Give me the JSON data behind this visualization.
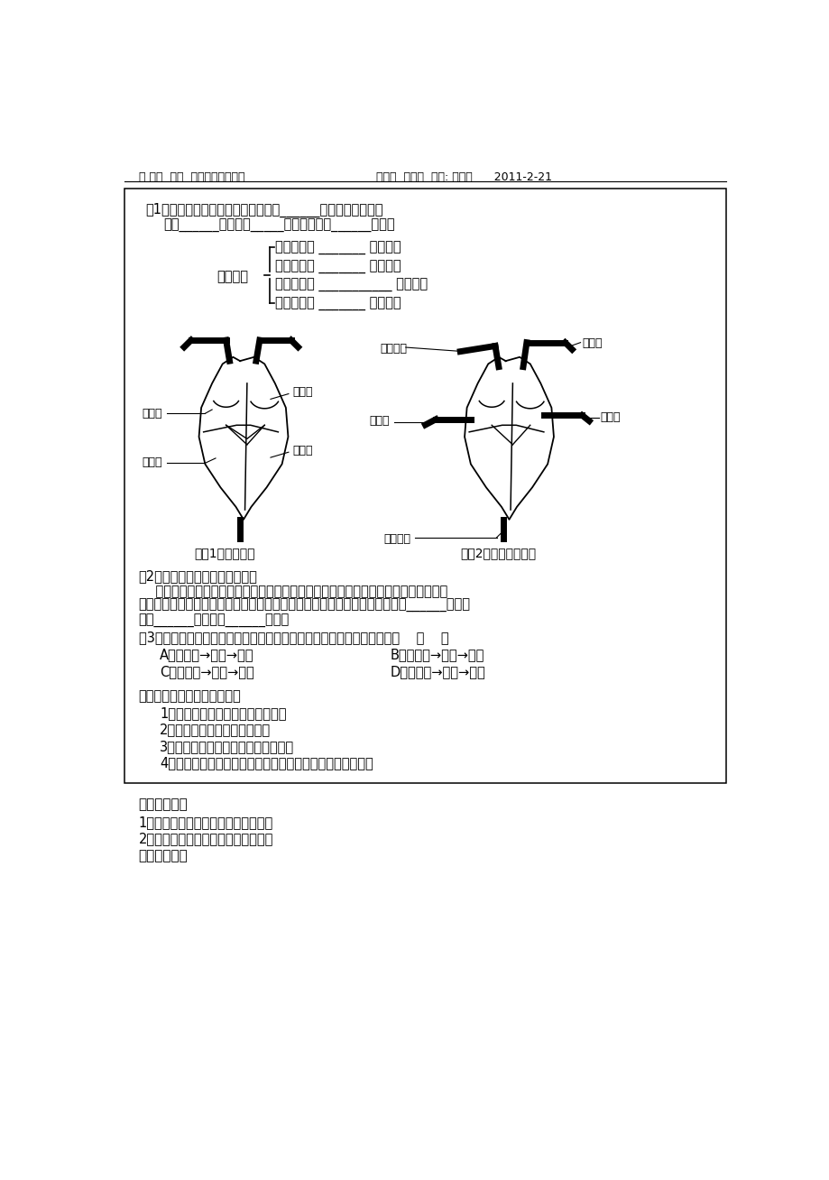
{
  "header_left": "八 年级  生物  活动单（教师用）",
  "header_right": "编制：  葛安纯  审核: 汪业进      2011-2-21",
  "sec1_line1": "（1）心脏有四个腔，同侧心房、心室______，左右心房和左右",
  "sec1_line2": "心室______。心房连_____血管，心室连______血管。",
  "brace_label": "四个腔：",
  "brace_items": [
    "左心房：与 _______ 相连通；",
    "左心室：与 _______ 相连通；",
    "右心房：与 ___________ 相连通；",
    "右心室：与 _______ 相连通；"
  ],
  "fig1_caption": "（图1）心脏四腔",
  "fig2_caption": "（图2）心脏与各血管",
  "h1_labels": {
    "zuoxinfang": "左心房",
    "zuoxinshi": "左心室",
    "youxinfang": "右心房",
    "youxinshi": "右心室"
  },
  "h2_labels": {
    "zhudongmai": "主动脉",
    "shangqiangjingmai": "上腔静脉",
    "feidongmai": "肺动脉",
    "feijingmai": "肺静脉",
    "xiaqiangjingmai": "下腔静脉"
  },
  "sec2_line0": "（2）、比较心房、心室的壁厚。",
  "sec2_line1": "    结构和功能是相适应的，左心室的收缩把血液输送到全身，距离最长；右心室的收缩",
  "sec2_line2": "把血液输送到肺，距离较长；心房收缩只需把血液送入心室，距离最短，；故______的壁最",
  "sec2_line3": "厚。______的次之，______的最薄",
  "sec3_stem": "（3）心脏的瓣膜只能向一个方向打开，这就保证了血液流动的方向只能是    （    ）",
  "sec3_A": "A．由心室→心房→动脉",
  "sec3_B": "B．由心室→心房→静脉",
  "sec3_C": "C．由心房→心室→动脉",
  "sec3_D": "D．由心房→心室→静脉",
  "act3_title": "活动三：探究运动对心率的影",
  "act3_items": [
    "1、什么叫心率？什么叫动脉脉搏？",
    "2、学生体验测量自己的心率。",
    "3、学生体验探究运动对心率的影响。",
    "4、讨论：为什么人的心率在运动状态下比在平静状态下高？"
  ],
  "hw_title": "《作业布置》",
  "hw_items": [
    "1、课堂作业：完成练习册课时作业。",
    "2、课后作业：预习人体的血液循环。"
  ],
  "ref_title": "《教学反思》",
  "bg_color": "#ffffff"
}
